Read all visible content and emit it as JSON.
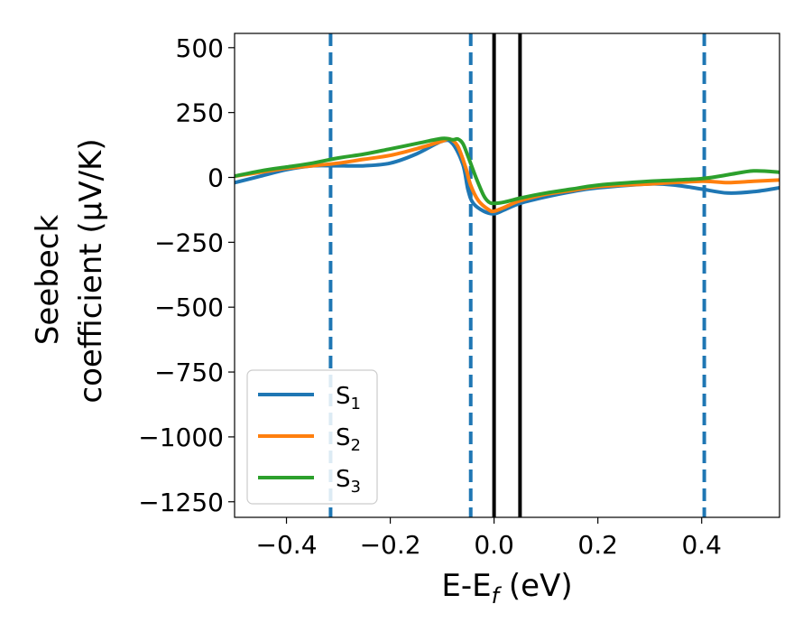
{
  "chart_data": {
    "type": "line",
    "xlabel": {
      "main": "E-E",
      "sub": "f",
      "unit": " (eV)"
    },
    "ylabel": {
      "line1": "Seebeck",
      "line2": "coefficient  (μV/K)"
    },
    "xlim": [
      -0.5,
      0.55
    ],
    "ylim": [
      -1310,
      555
    ],
    "xticks": [
      -0.4,
      -0.2,
      0.0,
      0.2,
      0.4
    ],
    "xtick_labels": [
      "−0.4",
      "−0.2",
      "0.0",
      "0.2",
      "0.4"
    ],
    "yticks": [
      500,
      250,
      0,
      -250,
      -500,
      -750,
      -1000,
      -1250
    ],
    "ytick_labels": [
      "500",
      "250",
      "0",
      "−250",
      "−500",
      "−750",
      "−1000",
      "−1250"
    ],
    "grid": false,
    "legend": {
      "placement": "lower-left"
    },
    "series": [
      {
        "name": "S",
        "sub": "1",
        "color": "#1f77b4",
        "x": [
          -0.5,
          -0.45,
          -0.4,
          -0.35,
          -0.3,
          -0.25,
          -0.2,
          -0.15,
          -0.1,
          -0.08,
          -0.06,
          -0.05,
          -0.04,
          -0.02,
          0.0,
          0.02,
          0.05,
          0.1,
          0.15,
          0.2,
          0.3,
          0.35,
          0.4,
          0.45,
          0.5,
          0.55
        ],
        "y": [
          -20,
          5,
          30,
          45,
          45,
          45,
          55,
          90,
          140,
          130,
          50,
          -50,
          -100,
          -130,
          -140,
          -125,
          -100,
          -75,
          -55,
          -40,
          -25,
          -30,
          -45,
          -60,
          -55,
          -40
        ]
      },
      {
        "name": "S",
        "sub": "2",
        "color": "#ff7f0e",
        "x": [
          -0.5,
          -0.45,
          -0.4,
          -0.35,
          -0.3,
          -0.25,
          -0.2,
          -0.15,
          -0.1,
          -0.085,
          -0.07,
          -0.055,
          -0.045,
          -0.03,
          -0.01,
          0.0,
          0.02,
          0.05,
          0.1,
          0.15,
          0.2,
          0.3,
          0.4,
          0.45,
          0.5,
          0.55
        ],
        "y": [
          5,
          20,
          35,
          45,
          55,
          70,
          85,
          110,
          140,
          148,
          120,
          40,
          -30,
          -90,
          -125,
          -130,
          -115,
          -90,
          -65,
          -50,
          -35,
          -25,
          -15,
          -20,
          -15,
          -10
        ]
      },
      {
        "name": "S",
        "sub": "3",
        "color": "#2ca02c",
        "x": [
          -0.5,
          -0.45,
          -0.4,
          -0.35,
          -0.3,
          -0.25,
          -0.2,
          -0.15,
          -0.1,
          -0.08,
          -0.07,
          -0.06,
          -0.05,
          -0.035,
          -0.02,
          -0.01,
          0.0,
          0.02,
          0.05,
          0.1,
          0.15,
          0.2,
          0.3,
          0.4,
          0.45,
          0.5,
          0.55
        ],
        "y": [
          5,
          25,
          40,
          55,
          75,
          90,
          110,
          130,
          150,
          145,
          148,
          130,
          80,
          0,
          -70,
          -95,
          -100,
          -95,
          -80,
          -60,
          -45,
          -30,
          -15,
          -5,
          10,
          25,
          20
        ]
      }
    ],
    "vlines": [
      {
        "x": -0.315,
        "style": "dashed",
        "color": "#1f77b4"
      },
      {
        "x": -0.045,
        "style": "dashed",
        "color": "#1f77b4"
      },
      {
        "x": 0.0,
        "style": "solid",
        "color": "#000000"
      },
      {
        "x": 0.05,
        "style": "solid",
        "color": "#000000"
      },
      {
        "x": 0.405,
        "style": "dashed",
        "color": "#1f77b4"
      }
    ]
  }
}
